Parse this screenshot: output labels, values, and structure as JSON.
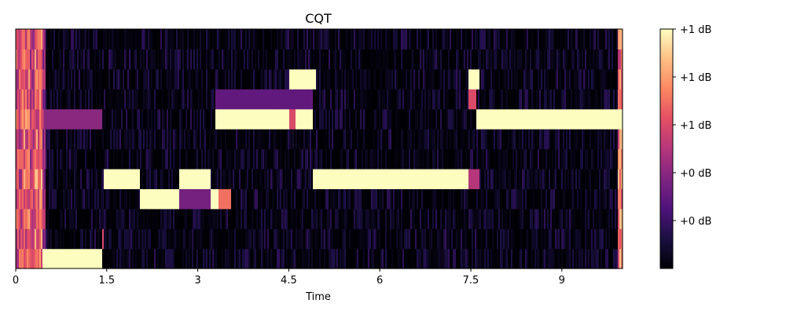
{
  "chart_data": {
    "type": "heatmap",
    "title": "CQT",
    "xlabel": "Time",
    "ylabel": "",
    "xlim": [
      0,
      10.0
    ],
    "x_ticks": [
      0,
      1.5,
      3,
      4.5,
      6,
      7.5,
      9
    ],
    "x_tick_labels": [
      "0",
      "1.5",
      "3",
      "4.5",
      "6",
      "7.5",
      "9"
    ],
    "n_rows": 12,
    "value_range": [
      0,
      1
    ],
    "colormap": "magma",
    "colorbar": {
      "tick_values": [
        0.2,
        0.4,
        0.6,
        0.8,
        1.0
      ],
      "tick_labels": [
        "+0 dB",
        "+0 dB",
        "+1 dB",
        "+1 dB",
        "+1 dB"
      ]
    },
    "noise_level": 0.08,
    "noise_seed": 7,
    "note_segments": [
      {
        "row": 0,
        "start": 0.45,
        "end": 1.42,
        "value": 1.0
      },
      {
        "row": 1,
        "start": 1.42,
        "end": 1.46,
        "value": 0.6
      },
      {
        "row": 4,
        "start": 1.45,
        "end": 2.05,
        "value": 1.0
      },
      {
        "row": 4,
        "start": 2.7,
        "end": 3.2,
        "value": 1.0
      },
      {
        "row": 4,
        "start": 4.9,
        "end": 7.45,
        "value": 1.0
      },
      {
        "row": 4,
        "start": 7.45,
        "end": 7.65,
        "value": 0.5
      },
      {
        "row": 3,
        "start": 2.05,
        "end": 2.7,
        "value": 1.0
      },
      {
        "row": 3,
        "start": 2.7,
        "end": 3.2,
        "value": 0.35
      },
      {
        "row": 3,
        "start": 3.2,
        "end": 3.35,
        "value": 1.0
      },
      {
        "row": 3,
        "start": 3.35,
        "end": 3.55,
        "value": 0.7
      },
      {
        "row": 7,
        "start": 3.3,
        "end": 4.5,
        "value": 1.0
      },
      {
        "row": 7,
        "start": 4.5,
        "end": 4.6,
        "value": 0.6
      },
      {
        "row": 7,
        "start": 4.6,
        "end": 4.9,
        "value": 1.0
      },
      {
        "row": 7,
        "start": 7.6,
        "end": 10.0,
        "value": 1.0
      },
      {
        "row": 7,
        "start": 0.45,
        "end": 1.42,
        "value": 0.4
      },
      {
        "row": 9,
        "start": 4.5,
        "end": 4.6,
        "value": 1.0
      },
      {
        "row": 9,
        "start": 4.6,
        "end": 4.95,
        "value": 1.0
      },
      {
        "row": 9,
        "start": 7.45,
        "end": 7.65,
        "value": 1.0
      },
      {
        "row": 8,
        "start": 3.3,
        "end": 4.9,
        "value": 0.3
      },
      {
        "row": 8,
        "start": 7.45,
        "end": 7.6,
        "value": 0.6
      }
    ],
    "onset_columns": [
      {
        "x": 0.05,
        "value": 0.75
      },
      {
        "x": 0.15,
        "value": 0.85
      },
      {
        "x": 0.25,
        "value": 0.7
      },
      {
        "x": 0.35,
        "value": 0.9
      },
      {
        "x": 0.42,
        "value": 0.55
      },
      {
        "x": 10.0,
        "value": 0.9
      }
    ]
  }
}
